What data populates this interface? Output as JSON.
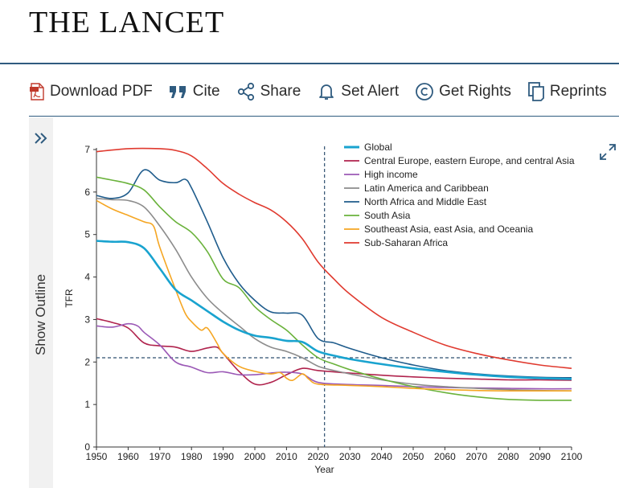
{
  "header": {
    "brand": "THE LANCET"
  },
  "toolbar": {
    "items": [
      {
        "label": "Download PDF",
        "icon": "pdf-icon"
      },
      {
        "label": "Cite",
        "icon": "quote-icon"
      },
      {
        "label": "Share",
        "icon": "share-icon"
      },
      {
        "label": "Set Alert",
        "icon": "bell-icon"
      },
      {
        "label": "Get Rights",
        "icon": "copyright-icon"
      },
      {
        "label": "Reprints",
        "icon": "reprints-icon"
      }
    ]
  },
  "sidebar": {
    "outline_label": "Show Outline",
    "icon": "double-chevron-right-icon"
  },
  "expand_icon": "expand-icon",
  "chart_data": {
    "type": "line",
    "xlabel": "Year",
    "ylabel": "TFR",
    "xlim": [
      1950,
      2100
    ],
    "ylim": [
      0,
      7
    ],
    "xticks": [
      1950,
      1960,
      1970,
      1980,
      1990,
      2000,
      2010,
      2020,
      2030,
      2040,
      2050,
      2060,
      2070,
      2080,
      2090,
      2100
    ],
    "yticks": [
      0,
      1,
      2,
      3,
      4,
      5,
      6,
      7
    ],
    "legend_position": "top-right",
    "reference_lines": {
      "vertical_x": 2022,
      "horizontal_y": 2.1
    },
    "series": [
      {
        "name": "Global",
        "color": "#19a3cf",
        "width": 2.6,
        "points": [
          [
            1950,
            4.85
          ],
          [
            1955,
            4.83
          ],
          [
            1960,
            4.82
          ],
          [
            1965,
            4.68
          ],
          [
            1970,
            4.2
          ],
          [
            1975,
            3.7
          ],
          [
            1980,
            3.45
          ],
          [
            1985,
            3.2
          ],
          [
            1990,
            2.95
          ],
          [
            1995,
            2.75
          ],
          [
            2000,
            2.62
          ],
          [
            2005,
            2.57
          ],
          [
            2010,
            2.5
          ],
          [
            2015,
            2.47
          ],
          [
            2020,
            2.25
          ],
          [
            2025,
            2.15
          ],
          [
            2030,
            2.07
          ],
          [
            2040,
            1.95
          ],
          [
            2050,
            1.85
          ],
          [
            2060,
            1.77
          ],
          [
            2070,
            1.7
          ],
          [
            2080,
            1.65
          ],
          [
            2090,
            1.62
          ],
          [
            2100,
            1.6
          ]
        ]
      },
      {
        "name": "Central Europe, eastern Europe, and central Asia",
        "color": "#b0234d",
        "width": 1.6,
        "points": [
          [
            1950,
            3.02
          ],
          [
            1955,
            2.93
          ],
          [
            1960,
            2.8
          ],
          [
            1965,
            2.45
          ],
          [
            1970,
            2.38
          ],
          [
            1975,
            2.35
          ],
          [
            1980,
            2.25
          ],
          [
            1985,
            2.33
          ],
          [
            1988,
            2.35
          ],
          [
            1990,
            2.2
          ],
          [
            1995,
            1.78
          ],
          [
            2000,
            1.48
          ],
          [
            2005,
            1.52
          ],
          [
            2010,
            1.7
          ],
          [
            2015,
            1.85
          ],
          [
            2020,
            1.8
          ],
          [
            2030,
            1.74
          ],
          [
            2040,
            1.69
          ],
          [
            2050,
            1.65
          ],
          [
            2060,
            1.62
          ],
          [
            2070,
            1.6
          ],
          [
            2080,
            1.58
          ],
          [
            2090,
            1.58
          ],
          [
            2100,
            1.57
          ]
        ]
      },
      {
        "name": "High income",
        "color": "#9b59b6",
        "width": 1.6,
        "points": [
          [
            1950,
            2.85
          ],
          [
            1955,
            2.82
          ],
          [
            1960,
            2.9
          ],
          [
            1963,
            2.85
          ],
          [
            1965,
            2.7
          ],
          [
            1970,
            2.4
          ],
          [
            1975,
            2.0
          ],
          [
            1980,
            1.88
          ],
          [
            1985,
            1.75
          ],
          [
            1990,
            1.77
          ],
          [
            1995,
            1.7
          ],
          [
            2000,
            1.7
          ],
          [
            2005,
            1.74
          ],
          [
            2010,
            1.76
          ],
          [
            2015,
            1.72
          ],
          [
            2020,
            1.52
          ],
          [
            2030,
            1.47
          ],
          [
            2040,
            1.45
          ],
          [
            2050,
            1.42
          ],
          [
            2060,
            1.4
          ],
          [
            2070,
            1.39
          ],
          [
            2080,
            1.38
          ],
          [
            2090,
            1.37
          ],
          [
            2100,
            1.37
          ]
        ]
      },
      {
        "name": "Latin America and Caribbean",
        "color": "#8c8c8c",
        "width": 1.6,
        "points": [
          [
            1950,
            5.85
          ],
          [
            1955,
            5.82
          ],
          [
            1960,
            5.8
          ],
          [
            1965,
            5.65
          ],
          [
            1970,
            5.2
          ],
          [
            1975,
            4.65
          ],
          [
            1980,
            4.0
          ],
          [
            1985,
            3.5
          ],
          [
            1990,
            3.15
          ],
          [
            1995,
            2.85
          ],
          [
            2000,
            2.55
          ],
          [
            2005,
            2.35
          ],
          [
            2010,
            2.25
          ],
          [
            2015,
            2.1
          ],
          [
            2020,
            1.9
          ],
          [
            2025,
            1.8
          ],
          [
            2030,
            1.72
          ],
          [
            2040,
            1.58
          ],
          [
            2050,
            1.48
          ],
          [
            2060,
            1.42
          ],
          [
            2070,
            1.38
          ],
          [
            2080,
            1.35
          ],
          [
            2090,
            1.33
          ],
          [
            2100,
            1.32
          ]
        ]
      },
      {
        "name": "North Africa and Middle East",
        "color": "#1f5c8c",
        "width": 1.6,
        "points": [
          [
            1950,
            5.92
          ],
          [
            1955,
            5.85
          ],
          [
            1960,
            5.98
          ],
          [
            1965,
            6.52
          ],
          [
            1970,
            6.28
          ],
          [
            1975,
            6.22
          ],
          [
            1978,
            6.3
          ],
          [
            1980,
            6.1
          ],
          [
            1985,
            5.3
          ],
          [
            1990,
            4.45
          ],
          [
            1995,
            3.85
          ],
          [
            2000,
            3.45
          ],
          [
            2005,
            3.18
          ],
          [
            2010,
            3.15
          ],
          [
            2015,
            3.1
          ],
          [
            2020,
            2.55
          ],
          [
            2025,
            2.45
          ],
          [
            2030,
            2.32
          ],
          [
            2040,
            2.1
          ],
          [
            2050,
            1.93
          ],
          [
            2060,
            1.8
          ],
          [
            2070,
            1.72
          ],
          [
            2080,
            1.67
          ],
          [
            2090,
            1.64
          ],
          [
            2100,
            1.63
          ]
        ]
      },
      {
        "name": "South Asia",
        "color": "#6ab23b",
        "width": 1.6,
        "points": [
          [
            1950,
            6.35
          ],
          [
            1955,
            6.28
          ],
          [
            1960,
            6.2
          ],
          [
            1965,
            6.05
          ],
          [
            1970,
            5.65
          ],
          [
            1975,
            5.3
          ],
          [
            1980,
            5.05
          ],
          [
            1985,
            4.6
          ],
          [
            1990,
            3.95
          ],
          [
            1995,
            3.75
          ],
          [
            2000,
            3.3
          ],
          [
            2005,
            3.0
          ],
          [
            2010,
            2.75
          ],
          [
            2015,
            2.4
          ],
          [
            2020,
            2.1
          ],
          [
            2025,
            1.95
          ],
          [
            2030,
            1.82
          ],
          [
            2040,
            1.6
          ],
          [
            2050,
            1.42
          ],
          [
            2060,
            1.28
          ],
          [
            2070,
            1.18
          ],
          [
            2080,
            1.12
          ],
          [
            2090,
            1.1
          ],
          [
            2100,
            1.1
          ]
        ]
      },
      {
        "name": "Southeast Asia, east Asia, and Oceania",
        "color": "#f5a623",
        "width": 1.6,
        "points": [
          [
            1950,
            5.8
          ],
          [
            1955,
            5.6
          ],
          [
            1960,
            5.45
          ],
          [
            1965,
            5.3
          ],
          [
            1968,
            5.2
          ],
          [
            1970,
            4.7
          ],
          [
            1975,
            3.7
          ],
          [
            1978,
            3.15
          ],
          [
            1980,
            2.95
          ],
          [
            1983,
            2.75
          ],
          [
            1985,
            2.8
          ],
          [
            1988,
            2.45
          ],
          [
            1990,
            2.2
          ],
          [
            1995,
            1.9
          ],
          [
            2000,
            1.78
          ],
          [
            2005,
            1.72
          ],
          [
            2008,
            1.75
          ],
          [
            2010,
            1.62
          ],
          [
            2012,
            1.57
          ],
          [
            2015,
            1.72
          ],
          [
            2017,
            1.6
          ],
          [
            2020,
            1.48
          ],
          [
            2030,
            1.45
          ],
          [
            2040,
            1.42
          ],
          [
            2050,
            1.38
          ],
          [
            2060,
            1.35
          ],
          [
            2070,
            1.33
          ],
          [
            2080,
            1.32
          ],
          [
            2090,
            1.32
          ],
          [
            2100,
            1.32
          ]
        ]
      },
      {
        "name": "Sub-Saharan Africa",
        "color": "#e03a2f",
        "width": 1.6,
        "points": [
          [
            1950,
            6.95
          ],
          [
            1960,
            7.02
          ],
          [
            1970,
            7.02
          ],
          [
            1975,
            6.98
          ],
          [
            1980,
            6.85
          ],
          [
            1985,
            6.55
          ],
          [
            1990,
            6.2
          ],
          [
            1995,
            5.95
          ],
          [
            2000,
            5.75
          ],
          [
            2005,
            5.58
          ],
          [
            2010,
            5.3
          ],
          [
            2015,
            4.9
          ],
          [
            2020,
            4.35
          ],
          [
            2025,
            3.95
          ],
          [
            2030,
            3.6
          ],
          [
            2040,
            3.05
          ],
          [
            2050,
            2.7
          ],
          [
            2060,
            2.4
          ],
          [
            2070,
            2.2
          ],
          [
            2080,
            2.05
          ],
          [
            2090,
            1.93
          ],
          [
            2100,
            1.85
          ]
        ]
      }
    ]
  }
}
